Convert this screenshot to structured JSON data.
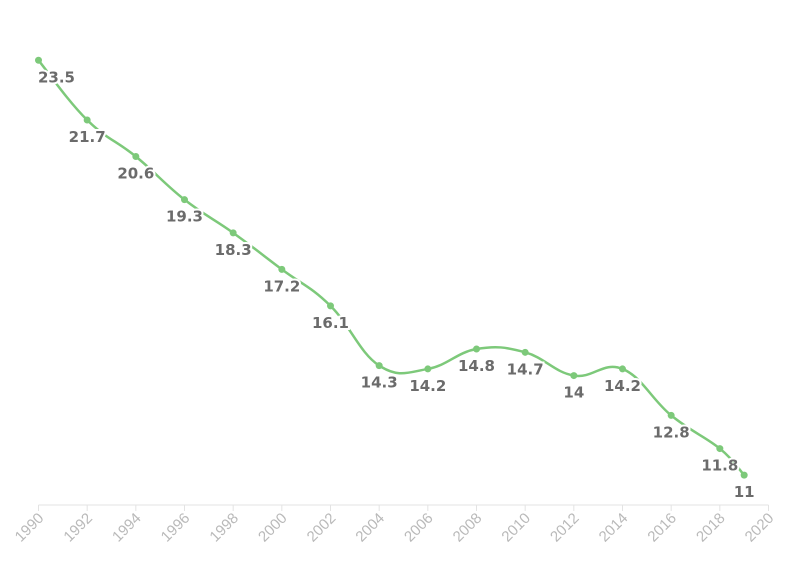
{
  "chart_data": {
    "type": "line",
    "x": [
      1990,
      1992,
      1994,
      1996,
      1998,
      2000,
      2002,
      2004,
      2006,
      2008,
      2010,
      2012,
      2014,
      2016,
      2018,
      2019
    ],
    "series": [
      {
        "values": [
          23.5,
          21.7,
          20.6,
          19.3,
          18.3,
          17.2,
          16.1,
          14.3,
          14.2,
          14.8,
          14.7,
          14,
          14.2,
          12.8,
          11.8,
          11
        ],
        "labels": [
          "23.5",
          "21.7",
          "20.6",
          "19.3",
          "18.3",
          "17.2",
          "16.1",
          "14.3",
          "14.2",
          "14.8",
          "14.7",
          "14",
          "14.2",
          "12.8",
          "11.8",
          "11"
        ],
        "color": "#7dc97a"
      }
    ],
    "xticks": [
      "1990",
      "1992",
      "1994",
      "1996",
      "1998",
      "2000",
      "2002",
      "2004",
      "2006",
      "2008",
      "2010",
      "2012",
      "2014",
      "2016",
      "2018",
      "2020"
    ],
    "xlim": [
      1990,
      2020
    ],
    "ylim": [
      10.1,
      23.9
    ],
    "grid": false,
    "axis_color": "#e3e3e3",
    "tick_color": "#b9b9b9",
    "label_color": "#6b6b6b"
  }
}
